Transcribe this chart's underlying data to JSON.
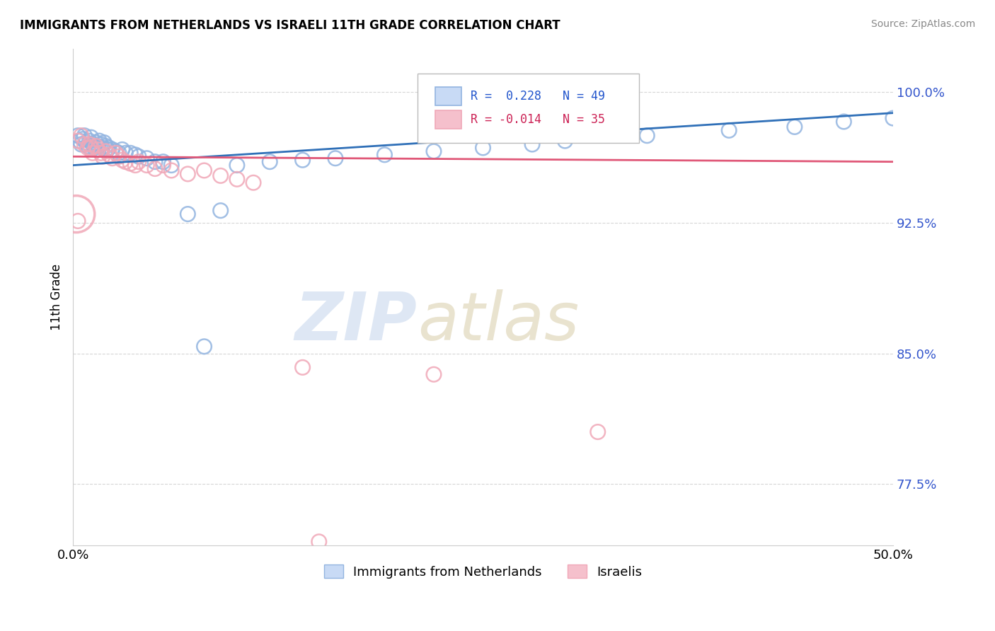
{
  "title": "IMMIGRANTS FROM NETHERLANDS VS ISRAELI 11TH GRADE CORRELATION CHART",
  "source": "Source: ZipAtlas.com",
  "ylabel": "11th Grade",
  "xlim": [
    0.0,
    50.0
  ],
  "ylim": [
    74.0,
    102.5
  ],
  "yticks": [
    77.5,
    85.0,
    92.5,
    100.0
  ],
  "ytick_labels": [
    "77.5%",
    "85.0%",
    "92.5%",
    "100.0%"
  ],
  "xticks": [
    0.0,
    10.0,
    20.0,
    30.0,
    40.0,
    50.0
  ],
  "xtick_labels": [
    "0.0%",
    "",
    "",
    "",
    "",
    "50.0%"
  ],
  "blue_R": 0.228,
  "blue_N": 49,
  "pink_R": -0.014,
  "pink_N": 35,
  "blue_color": "#92b4e0",
  "pink_color": "#f0a8b8",
  "blue_line_color": "#3070b8",
  "pink_line_color": "#e05878",
  "legend_blue_label": "Immigrants from Netherlands",
  "legend_pink_label": "Israelis",
  "blue_scatter_x": [
    0.3,
    0.4,
    0.5,
    0.6,
    0.7,
    0.8,
    0.9,
    1.0,
    1.1,
    1.2,
    1.3,
    1.4,
    1.5,
    1.6,
    1.7,
    1.8,
    1.9,
    2.0,
    2.1,
    2.2,
    2.4,
    2.6,
    2.8,
    3.0,
    3.2,
    3.5,
    3.8,
    4.0,
    4.5,
    5.0,
    5.5,
    6.0,
    7.0,
    8.0,
    9.0,
    10.0,
    12.0,
    14.0,
    16.0,
    19.0,
    22.0,
    25.0,
    28.0,
    30.0,
    35.0,
    40.0,
    44.0,
    47.0,
    50.0
  ],
  "blue_scatter_y": [
    97.5,
    97.2,
    97.0,
    97.3,
    97.5,
    97.1,
    96.9,
    97.2,
    97.4,
    97.0,
    96.8,
    97.1,
    96.9,
    97.2,
    97.0,
    96.8,
    97.1,
    96.9,
    96.7,
    96.8,
    96.7,
    96.6,
    96.5,
    96.7,
    96.5,
    96.5,
    96.4,
    96.3,
    96.2,
    96.0,
    96.0,
    95.8,
    93.0,
    85.4,
    93.2,
    95.8,
    96.0,
    96.1,
    96.2,
    96.4,
    96.6,
    96.8,
    97.0,
    97.2,
    97.5,
    97.8,
    98.0,
    98.3,
    98.5
  ],
  "pink_scatter_x": [
    0.3,
    0.5,
    0.7,
    0.9,
    1.0,
    1.1,
    1.2,
    1.4,
    1.5,
    1.7,
    1.8,
    2.0,
    2.2,
    2.4,
    2.6,
    2.8,
    3.0,
    3.2,
    3.5,
    3.8,
    4.0,
    4.5,
    5.0,
    5.5,
    6.0,
    7.0,
    8.0,
    9.0,
    10.0,
    11.0,
    14.0,
    0.3,
    22.0,
    32.0,
    15.0
  ],
  "pink_scatter_y": [
    97.2,
    97.5,
    97.0,
    96.8,
    97.0,
    96.8,
    96.5,
    96.9,
    96.7,
    96.5,
    96.3,
    96.6,
    96.4,
    96.2,
    96.5,
    96.3,
    96.1,
    96.0,
    95.9,
    95.8,
    96.0,
    95.8,
    95.6,
    95.8,
    95.5,
    95.3,
    95.5,
    95.2,
    95.0,
    94.8,
    84.2,
    92.6,
    83.8,
    80.5,
    74.2
  ],
  "large_pink_x": [
    0.2
  ],
  "large_pink_y": [
    93.0
  ],
  "blue_trendline_x": [
    0.0,
    50.0
  ],
  "blue_trendline_y": [
    95.8,
    98.8
  ],
  "pink_trendline_x": [
    0.0,
    50.0
  ],
  "pink_trendline_y": [
    96.3,
    96.0
  ]
}
